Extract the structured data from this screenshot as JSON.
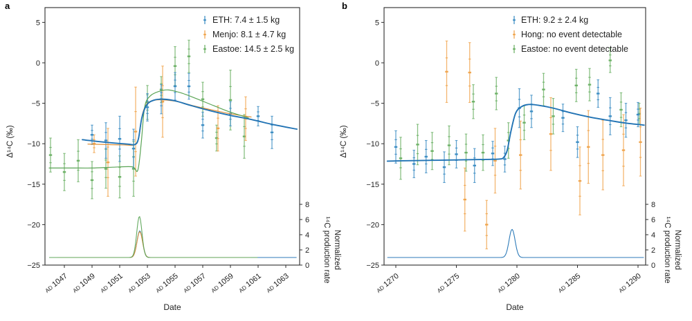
{
  "chart_data": [
    {
      "type": "errorbar+line",
      "panel_label": "a",
      "xlabel": "Date",
      "ylabel": "Δ¹⁴C (‰)",
      "ylabel_right_lines": [
        "Normalized",
        "¹⁴C production rate"
      ],
      "x_tick_prefix": "AD",
      "x_ticks": [
        1047,
        1049,
        1051,
        1053,
        1055,
        1057,
        1059,
        1061,
        1063
      ],
      "y_ticks": [
        5,
        0,
        -5,
        -10,
        -15,
        -20,
        -25
      ],
      "right_ticks": [
        0,
        2,
        4,
        6,
        8
      ],
      "xlim": [
        1045.6,
        1064.0
      ],
      "ylim": [
        -25,
        6.8
      ],
      "right_ylim": [
        0,
        8
      ],
      "grid": false,
      "legend_position": "top-right-inside",
      "legend": [
        {
          "label": "ETH: 7.4 ± 1.5 kg",
          "color": "#3f8fc4"
        },
        {
          "label": "Menjo: 8.1 ± 4.7 kg",
          "color": "#f0a650"
        },
        {
          "label": "Eastoe: 14.5 ± 2.5 kg",
          "color": "#6eb268"
        }
      ],
      "series": [
        {
          "name": "Eastoe",
          "color": "#6eb268",
          "points": [
            [
              1046,
              -11.4,
              2.1
            ],
            [
              1047,
              -13.5,
              2.3
            ],
            [
              1048,
              -12.1,
              2.6
            ],
            [
              1049,
              -14.5,
              2.3
            ],
            [
              1050,
              -13.1,
              2.4
            ],
            [
              1051,
              -14.1,
              2.6
            ],
            [
              1052,
              -13.1,
              3.4
            ],
            [
              1053,
              -4.9,
              2.1
            ],
            [
              1054,
              -3.3,
              1.6
            ],
            [
              1055,
              -0.4,
              2.4
            ],
            [
              1056,
              0.8,
              2.0
            ],
            [
              1057,
              -4.5,
              2.1
            ],
            [
              1058,
              -9.3,
              1.6
            ],
            [
              1059,
              -4.6,
              3.7
            ],
            [
              1060,
              -9.1,
              2.7
            ]
          ]
        },
        {
          "name": "Menjo",
          "color": "#f0a650",
          "points": [
            [
              1049.15,
              -10.0,
              1.1
            ],
            [
              1050.15,
              -12.3,
              4.2
            ],
            [
              1052.15,
              -8.5,
              5.5
            ],
            [
              1054.1,
              -4.8,
              4.4
            ],
            [
              1058.1,
              -8.1,
              2.8
            ],
            [
              1060.1,
              -6.9,
              2.7
            ]
          ]
        },
        {
          "name": "ETH",
          "color": "#3f8fc4",
          "points": [
            [
              1049,
              -8.9,
              1.2
            ],
            [
              1050,
              -9.6,
              2.2
            ],
            [
              1051,
              -9.4,
              2.8
            ],
            [
              1052,
              -10.6,
              2.4
            ],
            [
              1053,
              -5.5,
              1.7
            ],
            [
              1054,
              -4.5,
              1.8
            ],
            [
              1055,
              -2.9,
              1.7
            ],
            [
              1056,
              -2.9,
              1.6
            ],
            [
              1057,
              -7.7,
              1.6
            ],
            [
              1059,
              -6.3,
              1.5
            ],
            [
              1061,
              -6.6,
              1.2
            ],
            [
              1062,
              -8.6,
              2.0
            ]
          ]
        }
      ],
      "fits": [
        {
          "name": "Menjo fit",
          "color": "#e09138",
          "width": 1.2,
          "points": [
            [
              1048.7,
              -10.05
            ],
            [
              1050,
              -10.1
            ],
            [
              1051.3,
              -10.15
            ],
            [
              1052.1,
              -10.1
            ],
            [
              1052.4,
              -9.0
            ],
            [
              1052.65,
              -6.3
            ],
            [
              1053,
              -5.0
            ],
            [
              1053.6,
              -4.6
            ],
            [
              1054.3,
              -4.6
            ],
            [
              1055.2,
              -4.8
            ],
            [
              1056.3,
              -5.3
            ],
            [
              1057.6,
              -5.8
            ],
            [
              1059,
              -6.3
            ],
            [
              1060.5,
              -6.7
            ]
          ]
        },
        {
          "name": "Eastoe fit",
          "color": "#5aa455",
          "width": 1.2,
          "points": [
            [
              1045.9,
              -13.0
            ],
            [
              1047.5,
              -13.0
            ],
            [
              1049,
              -13.0
            ],
            [
              1050.5,
              -12.9
            ],
            [
              1051.9,
              -12.85
            ],
            [
              1052.3,
              -13.3
            ],
            [
              1052.55,
              -10.0
            ],
            [
              1052.8,
              -5.5
            ],
            [
              1053.2,
              -4.1
            ],
            [
              1053.9,
              -3.5
            ],
            [
              1054.5,
              -3.35
            ],
            [
              1055.4,
              -3.7
            ],
            [
              1056.5,
              -4.4
            ],
            [
              1057.8,
              -5.3
            ],
            [
              1059,
              -6.1
            ],
            [
              1060.3,
              -6.8
            ]
          ]
        },
        {
          "name": "ETH fit",
          "color": "#2173b4",
          "width": 1.9,
          "points": [
            [
              1048.3,
              -9.5
            ],
            [
              1049.3,
              -9.7
            ],
            [
              1050.5,
              -9.9
            ],
            [
              1051.6,
              -10.05
            ],
            [
              1052.1,
              -10.1
            ],
            [
              1052.35,
              -9.4
            ],
            [
              1052.6,
              -6.8
            ],
            [
              1052.95,
              -5.2
            ],
            [
              1053.5,
              -4.6
            ],
            [
              1054.2,
              -4.5
            ],
            [
              1055,
              -4.7
            ],
            [
              1056.2,
              -5.3
            ],
            [
              1057.5,
              -5.9
            ],
            [
              1059,
              -6.5
            ],
            [
              1060.5,
              -7.0
            ],
            [
              1062,
              -7.6
            ],
            [
              1063.8,
              -8.2
            ]
          ]
        }
      ],
      "production": [
        {
          "name": "ETH production",
          "color": "#2173b4",
          "baseline": 1,
          "center": 1052.45,
          "sigma": 0.2,
          "amplitude": 3.5,
          "range": [
            1048.3,
            1063.8
          ]
        },
        {
          "name": "Menjo production",
          "color": "#e09138",
          "baseline": 1,
          "center": 1052.45,
          "sigma": 0.2,
          "amplitude": 3.4,
          "range": [
            1046.5,
            1060.5
          ]
        },
        {
          "name": "Eastoe production",
          "color": "#5aa455",
          "baseline": 1,
          "center": 1052.42,
          "sigma": 0.19,
          "amplitude": 5.4,
          "range": [
            1045.9,
            1061.0
          ]
        }
      ]
    },
    {
      "type": "errorbar+line",
      "panel_label": "b",
      "xlabel": "Date",
      "ylabel": "Δ¹⁴C (‰)",
      "ylabel_right_lines": [
        "Normalized",
        "¹⁴C production rate"
      ],
      "x_tick_prefix": "AD",
      "x_ticks": [
        1270,
        1275,
        1280,
        1285,
        1290
      ],
      "y_ticks": [
        5,
        0,
        -5,
        -10,
        -15,
        -20,
        -25
      ],
      "right_ticks": [
        0,
        2,
        4,
        6,
        8
      ],
      "xlim": [
        1269.0,
        1290.6
      ],
      "ylim": [
        -25,
        6.8
      ],
      "right_ylim": [
        0,
        8
      ],
      "grid": false,
      "legend_position": "top-right-inside",
      "legend": [
        {
          "label": "ETH: 9.2 ± 2.4 kg",
          "color": "#3f8fc4"
        },
        {
          "label": "Hong: no event detectable",
          "color": "#f0a650"
        },
        {
          "label": "Eastoe: no event detectable",
          "color": "#6eb268"
        }
      ],
      "series": [
        {
          "name": "Eastoe",
          "color": "#6eb268",
          "points": [
            [
              1270.4,
              -11.8,
              2.6
            ],
            [
              1271.8,
              -10.1,
              2.5
            ],
            [
              1273,
              -10.9,
              2.3
            ],
            [
              1274.4,
              -10.2,
              2.4
            ],
            [
              1275.8,
              -11.1,
              2.3
            ],
            [
              1276.4,
              -4.8,
              2.1
            ],
            [
              1277.2,
              -11.1,
              2.2
            ],
            [
              1278.3,
              -3.8,
              2.0
            ],
            [
              1279.3,
              -9.6,
              2.2
            ],
            [
              1280.6,
              -7.4,
              2.1
            ],
            [
              1282.2,
              -3.3,
              2.0
            ],
            [
              1283,
              -6.6,
              2.2
            ],
            [
              1284.9,
              -2.8,
              2.0
            ],
            [
              1286,
              -2.7,
              2.0
            ],
            [
              1287.7,
              0.3,
              1.5
            ],
            [
              1288.6,
              -5.8,
              2.1
            ],
            [
              1290.1,
              -6.3,
              1.3
            ]
          ]
        },
        {
          "name": "Hong",
          "color": "#f0a650",
          "points": [
            [
              1274.2,
              -1.1,
              3.8
            ],
            [
              1275.7,
              -16.9,
              3.9
            ],
            [
              1276.1,
              -1.2,
              3.7
            ],
            [
              1277.5,
              -20.0,
              3.0
            ],
            [
              1278.2,
              -12.1,
              4.0
            ],
            [
              1280.3,
              -11.4,
              4.2
            ],
            [
              1282.8,
              -8.8,
              4.5
            ],
            [
              1285.2,
              -14.6,
              4.2
            ],
            [
              1285.9,
              -10.4,
              4.5
            ],
            [
              1287.1,
              -11.4,
              4.3
            ],
            [
              1288.8,
              -10.8,
              4.4
            ],
            [
              1290.2,
              -9.8,
              4.2
            ]
          ]
        },
        {
          "name": "ETH",
          "color": "#3f8fc4",
          "points": [
            [
              1270,
              -10.4,
              2.0
            ],
            [
              1271.5,
              -12.5,
              1.7
            ],
            [
              1272.5,
              -11.6,
              2.0
            ],
            [
              1274,
              -12.9,
              1.9
            ],
            [
              1275,
              -11.3,
              1.7
            ],
            [
              1276.5,
              -12.7,
              2.1
            ],
            [
              1278,
              -11.2,
              1.5
            ],
            [
              1279,
              -11.9,
              1.6
            ],
            [
              1280.2,
              -5.6,
              2.4
            ],
            [
              1281.2,
              -6.0,
              2.0
            ],
            [
              1283.8,
              -6.8,
              1.7
            ],
            [
              1285,
              -9.8,
              1.9
            ],
            [
              1286.7,
              -3.8,
              1.7
            ],
            [
              1287.7,
              -6.6,
              2.3
            ],
            [
              1289,
              -7.1,
              2.1
            ],
            [
              1290,
              -6.4,
              1.5
            ]
          ]
        }
      ],
      "fits": [
        {
          "name": "ETH fit",
          "color": "#2173b4",
          "width": 1.9,
          "points": [
            [
              1269.3,
              -12.15
            ],
            [
              1271,
              -12.1
            ],
            [
              1273,
              -12.05
            ],
            [
              1275,
              -12.0
            ],
            [
              1277,
              -11.95
            ],
            [
              1278.5,
              -11.9
            ],
            [
              1278.9,
              -11.7
            ],
            [
              1279.2,
              -10.8
            ],
            [
              1279.5,
              -8.5
            ],
            [
              1279.9,
              -6.2
            ],
            [
              1280.4,
              -5.4
            ],
            [
              1281,
              -5.15
            ],
            [
              1281.8,
              -5.25
            ],
            [
              1283,
              -5.6
            ],
            [
              1284.5,
              -6.2
            ],
            [
              1286,
              -6.7
            ],
            [
              1287.5,
              -7.1
            ],
            [
              1289,
              -7.45
            ],
            [
              1290.5,
              -7.7
            ]
          ]
        }
      ],
      "production": [
        {
          "name": "ETH production",
          "color": "#2173b4",
          "baseline": 1,
          "center": 1279.6,
          "sigma": 0.25,
          "amplitude": 3.7,
          "range": [
            1269.3,
            1290.5
          ]
        }
      ]
    }
  ]
}
